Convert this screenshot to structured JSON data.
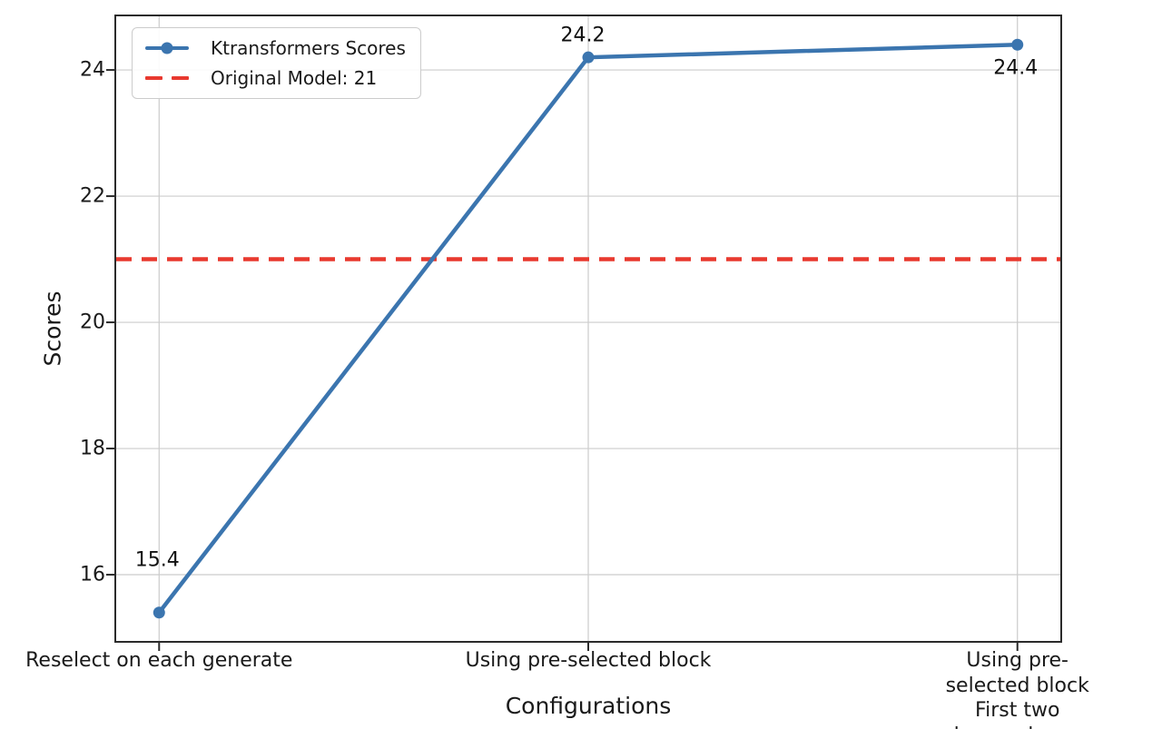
{
  "chart_data": {
    "type": "line",
    "xlabel": "Configurations",
    "ylabel": "Scores",
    "categories": [
      "Reselect on each generate",
      "Using pre-selected block",
      "Using pre-selected block\nFirst two layers dense"
    ],
    "series": [
      {
        "name": "Ktransformers Scores",
        "values": [
          15.4,
          24.2,
          24.4
        ],
        "color": "#3b75af",
        "marker": "circle"
      }
    ],
    "reference_line": {
      "label": "Original Model: 21",
      "value": 21,
      "color": "#e8392f",
      "style": "dashed"
    },
    "point_labels": [
      "15.4",
      "24.2",
      "24.4"
    ],
    "yticks": [
      16,
      18,
      20,
      22,
      24
    ],
    "ylim": [
      14.95,
      24.85
    ],
    "xlim": [
      -0.1,
      2.1
    ],
    "grid": true,
    "legend_position": "top-left",
    "legend": [
      "Ktransformers Scores",
      "Original Model: 21"
    ]
  },
  "colors": {
    "series_blue": "#3b75af",
    "reference_red": "#e8392f",
    "grid": "#cccccc",
    "spine": "#2b2b2b",
    "text": "#1a1a1a",
    "background": "#ffffff"
  }
}
